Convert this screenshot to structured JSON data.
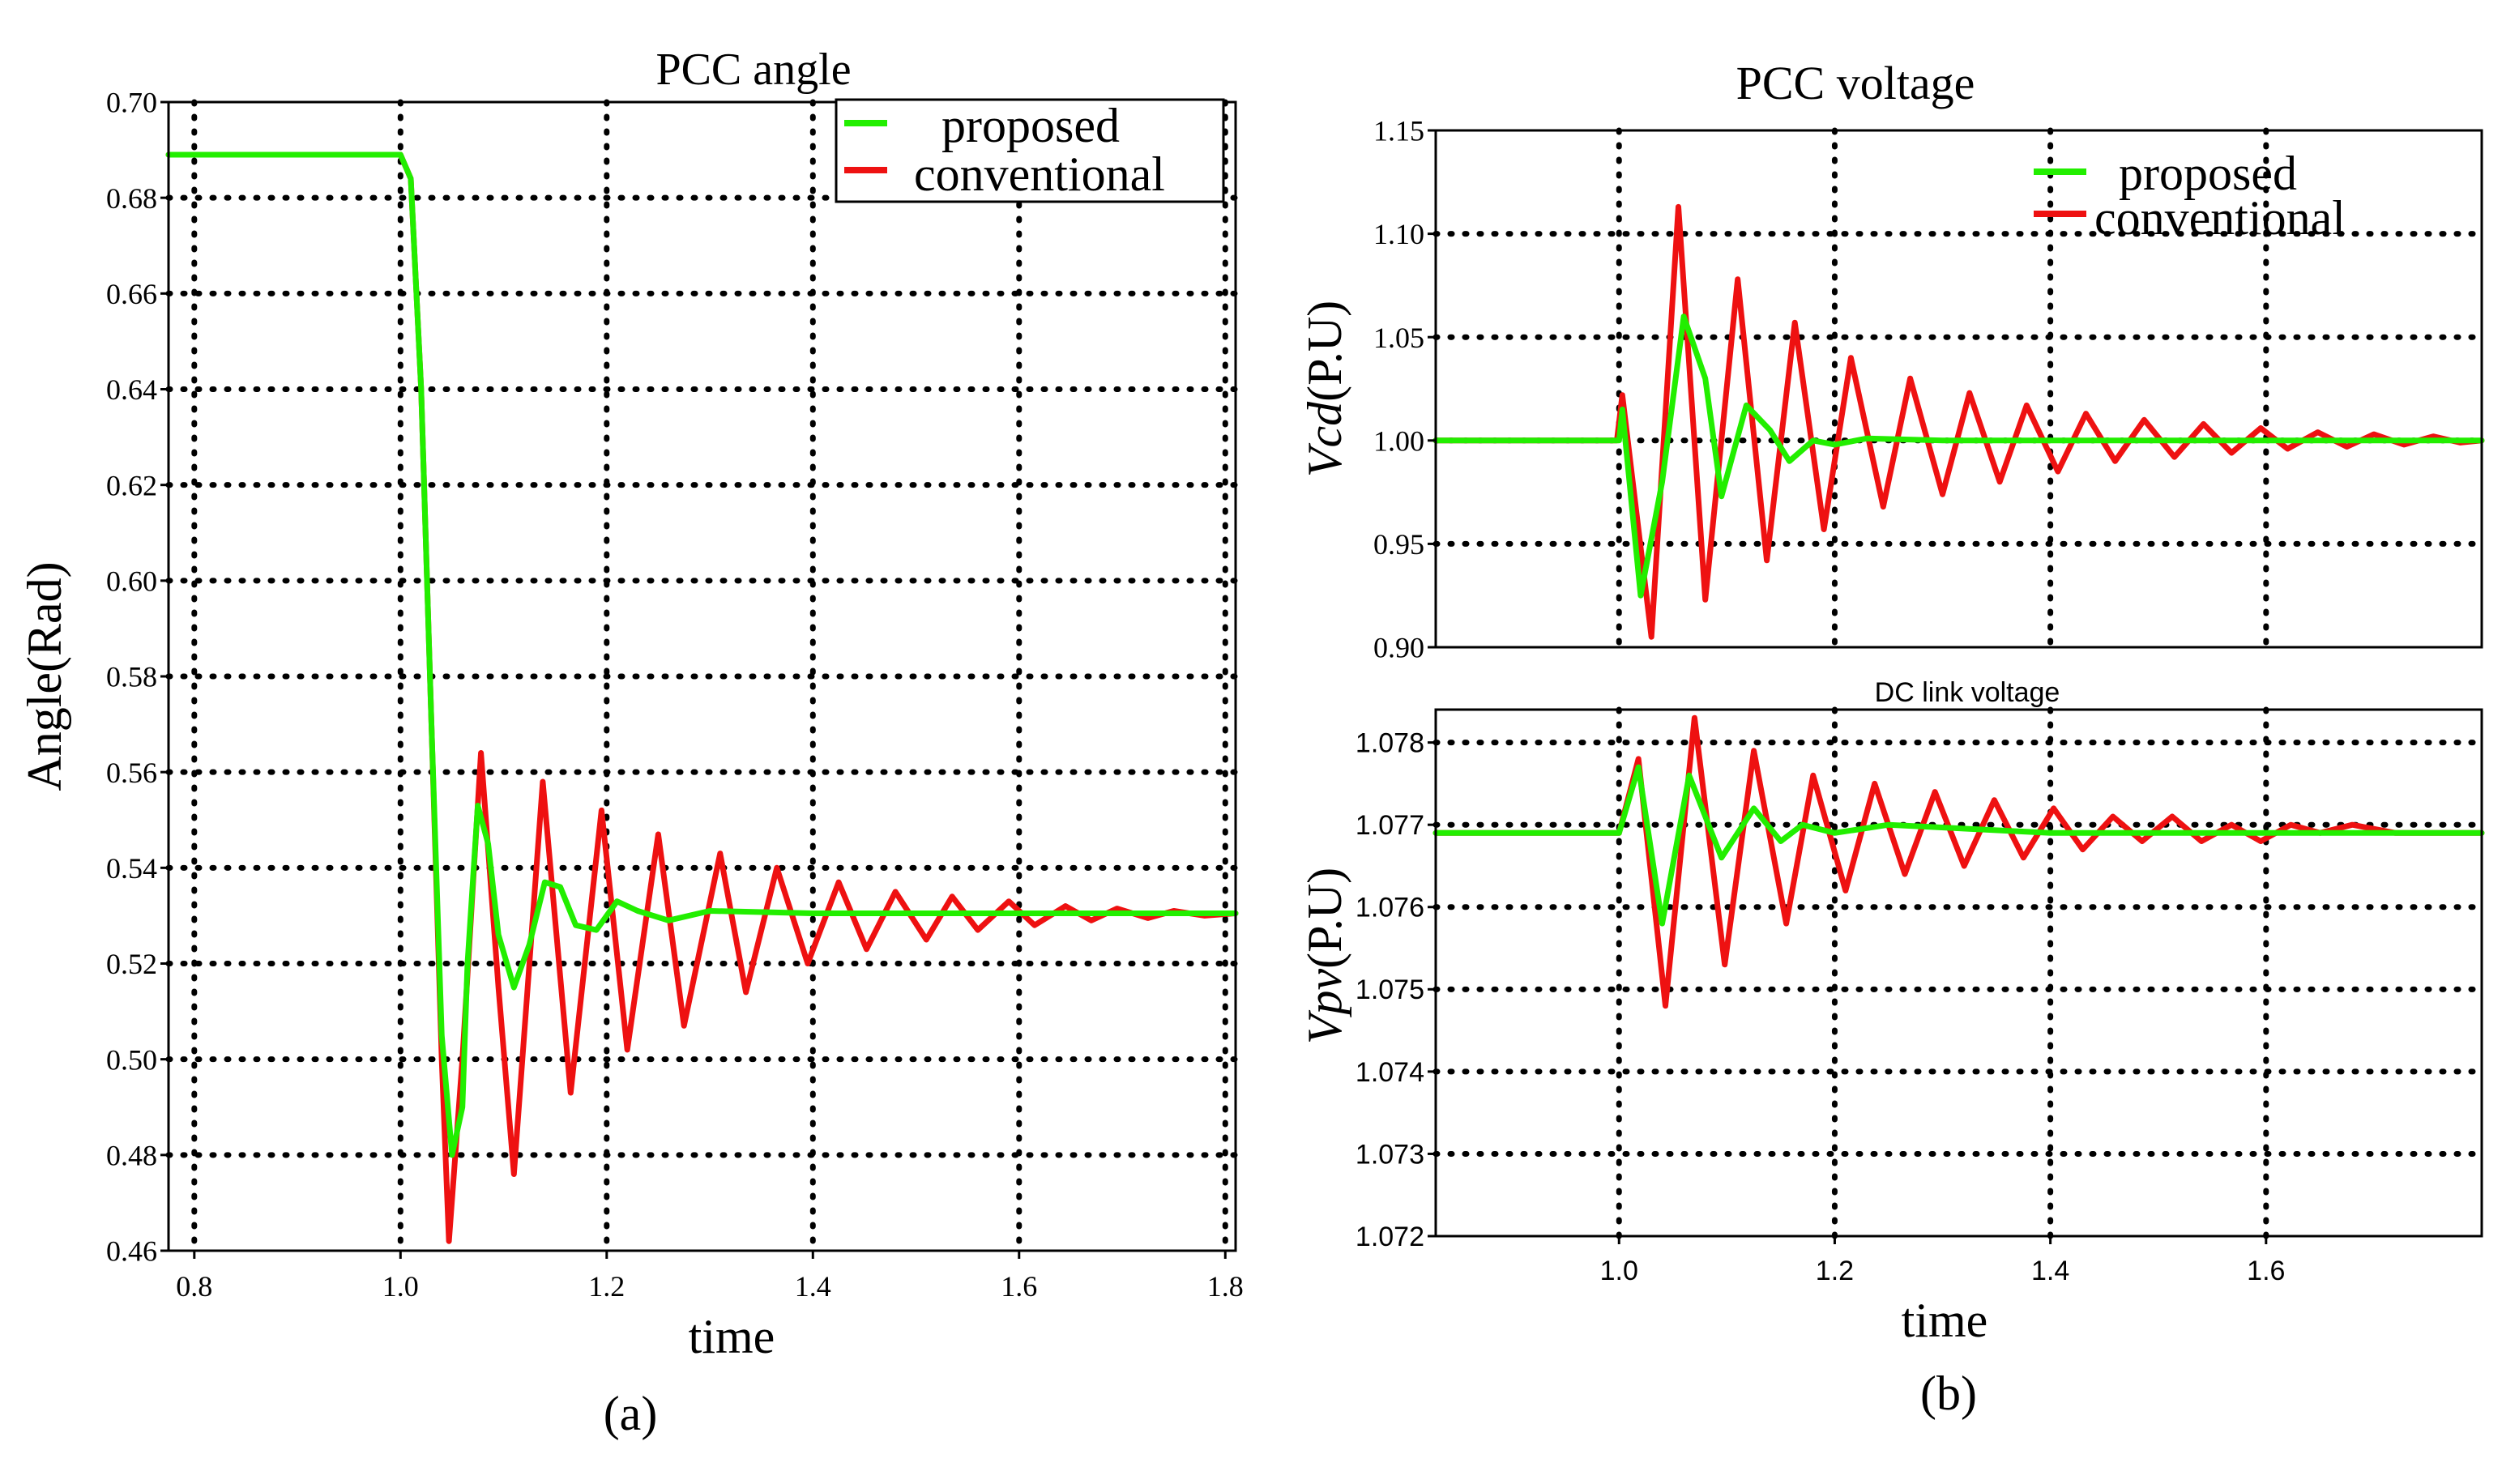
{
  "colors": {
    "proposed": "#22ee00",
    "conventional": "#ee1111",
    "grid": "#000000",
    "background": "#ffffff"
  },
  "chart_data": [
    {
      "type": "line",
      "title": "PCC angle",
      "xlabel": "time",
      "ylabel": "Angle(Rad)",
      "caption": "(a)",
      "xlim": [
        0.775,
        1.81
      ],
      "ylim": [
        0.46,
        0.7
      ],
      "xticks": [
        0.8,
        1.0,
        1.2,
        1.4,
        1.6,
        1.8
      ],
      "xtick_labels": [
        "0.8",
        "1.0",
        "1.2",
        "1.4",
        "1.6",
        "1.8"
      ],
      "yticks": [
        0.46,
        0.48,
        0.5,
        0.52,
        0.54,
        0.56,
        0.58,
        0.6,
        0.62,
        0.64,
        0.66,
        0.68,
        0.7
      ],
      "ytick_labels": [
        "0.46",
        "0.48",
        "0.50",
        "0.52",
        "0.54",
        "0.56",
        "0.58",
        "0.60",
        "0.62",
        "0.64",
        "0.66",
        "0.68",
        "0.70"
      ],
      "grid": true,
      "legend": "top-right",
      "series": [
        {
          "name": "proposed",
          "color": "#22ee00",
          "x": [
            0.775,
            1.0,
            1.01,
            1.02,
            1.03,
            1.04,
            1.05,
            1.06,
            1.065,
            1.075,
            1.085,
            1.095,
            1.11,
            1.125,
            1.14,
            1.155,
            1.17,
            1.19,
            1.21,
            1.23,
            1.26,
            1.3,
            1.4,
            1.6,
            1.81
          ],
          "y": [
            0.689,
            0.689,
            0.684,
            0.64,
            0.57,
            0.505,
            0.48,
            0.49,
            0.52,
            0.553,
            0.545,
            0.526,
            0.515,
            0.524,
            0.537,
            0.536,
            0.528,
            0.527,
            0.533,
            0.531,
            0.529,
            0.531,
            0.5305,
            0.5305,
            0.5305
          ]
        },
        {
          "name": "conventional",
          "color": "#ee1111",
          "x": [
            0.775,
            1.0,
            1.01,
            1.02,
            1.03,
            1.04,
            1.047,
            1.06,
            1.078,
            1.095,
            1.11,
            1.138,
            1.165,
            1.195,
            1.22,
            1.25,
            1.275,
            1.31,
            1.335,
            1.365,
            1.395,
            1.425,
            1.452,
            1.48,
            1.51,
            1.535,
            1.56,
            1.59,
            1.615,
            1.645,
            1.67,
            1.695,
            1.725,
            1.75,
            1.78,
            1.81
          ],
          "y": [
            0.689,
            0.689,
            0.684,
            0.64,
            0.57,
            0.5,
            0.462,
            0.5,
            0.564,
            0.515,
            0.476,
            0.558,
            0.493,
            0.552,
            0.502,
            0.547,
            0.507,
            0.543,
            0.514,
            0.54,
            0.52,
            0.537,
            0.523,
            0.535,
            0.525,
            0.534,
            0.527,
            0.533,
            0.528,
            0.532,
            0.529,
            0.5315,
            0.5295,
            0.531,
            0.53,
            0.5305
          ]
        }
      ]
    },
    {
      "type": "line",
      "title": "PCC voltage",
      "ylabel_symbol": "Vcd",
      "ylabel_unit": "(P.U)",
      "xlim": [
        0.83,
        1.8
      ],
      "ylim": [
        0.9,
        1.15
      ],
      "xticks": [
        1.0,
        1.2,
        1.4,
        1.6
      ],
      "yticks": [
        0.9,
        0.95,
        1.0,
        1.05,
        1.1,
        1.15
      ],
      "ytick_labels": [
        "0.90",
        "0.95",
        "1.00",
        "1.05",
        "1.10",
        "1.15"
      ],
      "grid": true,
      "legend": "top-right",
      "series": [
        {
          "name": "proposed",
          "color": "#22ee00",
          "x": [
            0.83,
            1.0,
            1.003,
            1.02,
            1.04,
            1.06,
            1.08,
            1.095,
            1.118,
            1.14,
            1.158,
            1.18,
            1.2,
            1.23,
            1.3,
            1.5,
            1.8
          ],
          "y": [
            1.0,
            1.0,
            1.015,
            0.925,
            0.98,
            1.06,
            1.03,
            0.973,
            1.017,
            1.005,
            0.99,
            1.0,
            0.998,
            1.001,
            1.0,
            1.0,
            1.0
          ]
        },
        {
          "name": "conventional",
          "color": "#ee1111",
          "x": [
            0.83,
            0.998,
            1.003,
            1.03,
            1.055,
            1.08,
            1.11,
            1.137,
            1.163,
            1.19,
            1.215,
            1.245,
            1.27,
            1.3,
            1.325,
            1.353,
            1.378,
            1.407,
            1.433,
            1.46,
            1.487,
            1.515,
            1.542,
            1.568,
            1.595,
            1.62,
            1.648,
            1.675,
            1.7,
            1.728,
            1.755,
            1.78,
            1.8
          ],
          "y": [
            1.0,
            1.0,
            1.022,
            0.905,
            1.113,
            0.923,
            1.078,
            0.942,
            1.057,
            0.957,
            1.04,
            0.968,
            1.03,
            0.974,
            1.023,
            0.98,
            1.017,
            0.985,
            1.013,
            0.99,
            1.01,
            0.992,
            1.008,
            0.994,
            1.006,
            0.996,
            1.004,
            0.997,
            1.003,
            0.998,
            1.002,
            0.999,
            1.0
          ]
        }
      ]
    },
    {
      "type": "line",
      "title": "DC link voltage",
      "ylabel_symbol": "Vpv",
      "ylabel_unit": "(P.U)",
      "xlabel": "time",
      "caption": "(b)",
      "xlim": [
        0.83,
        1.8
      ],
      "ylim": [
        1.072,
        1.0784
      ],
      "xticks": [
        1.0,
        1.2,
        1.4,
        1.6
      ],
      "xtick_labels": [
        "1.0",
        "1.2",
        "1.4",
        "1.6"
      ],
      "yticks": [
        1.072,
        1.073,
        1.074,
        1.075,
        1.076,
        1.077,
        1.078
      ],
      "ytick_labels": [
        "1.072",
        "1.073",
        "1.074",
        "1.075",
        "1.076",
        "1.077",
        "1.078"
      ],
      "grid": true,
      "series": [
        {
          "name": "proposed",
          "color": "#22ee00",
          "x": [
            0.83,
            1.0,
            1.018,
            1.04,
            1.065,
            1.095,
            1.125,
            1.15,
            1.17,
            1.2,
            1.25,
            1.4,
            1.8
          ],
          "y": [
            1.0769,
            1.0769,
            1.0777,
            1.0758,
            1.0776,
            1.0766,
            1.0772,
            1.0768,
            1.077,
            1.0769,
            1.077,
            1.0769,
            1.0769
          ]
        },
        {
          "name": "conventional",
          "color": "#ee1111",
          "x": [
            0.83,
            1.0,
            1.018,
            1.043,
            1.07,
            1.098,
            1.125,
            1.155,
            1.18,
            1.21,
            1.237,
            1.265,
            1.293,
            1.32,
            1.348,
            1.375,
            1.403,
            1.43,
            1.458,
            1.485,
            1.513,
            1.54,
            1.568,
            1.595,
            1.623,
            1.65,
            1.68,
            1.72,
            1.8
          ],
          "y": [
            1.0769,
            1.0769,
            1.0778,
            1.0748,
            1.0783,
            1.0753,
            1.0779,
            1.0758,
            1.0776,
            1.0762,
            1.0775,
            1.0764,
            1.0774,
            1.0765,
            1.0773,
            1.0766,
            1.0772,
            1.0767,
            1.0771,
            1.0768,
            1.0771,
            1.0768,
            1.077,
            1.0768,
            1.077,
            1.0769,
            1.077,
            1.0769,
            1.0769
          ]
        }
      ]
    }
  ]
}
